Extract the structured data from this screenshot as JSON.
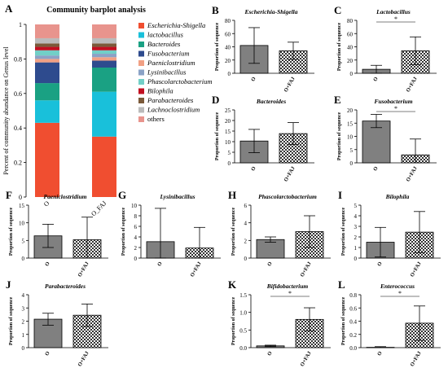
{
  "figure": {
    "panel_letters": [
      "A",
      "B",
      "C",
      "D",
      "E",
      "F",
      "G",
      "H",
      "I",
      "J",
      "K",
      "L"
    ]
  },
  "colors": {
    "stack": [
      "#f04e30",
      "#19c0da",
      "#1aa183",
      "#2e4b8e",
      "#f1a084",
      "#8ba2c6",
      "#72cfc7",
      "#c10f20",
      "#7b5a3a",
      "#bbbbbb",
      "#e8948d"
    ],
    "bar_o": "#808080",
    "bar_ofaj_pattern": "checker"
  },
  "chart_data": [
    {
      "panel": "A",
      "type": "bar",
      "stacked": true,
      "title": "Community barplot analysis",
      "ylabel": "Percent of community abundance on Genus level",
      "categories": [
        "O",
        "O_FAJ"
      ],
      "ylim": [
        0,
        1
      ],
      "yticks": [
        "0",
        "0.2",
        "0.4",
        "0.6",
        "0.8",
        "1"
      ],
      "legend_position": "right",
      "series": [
        {
          "name": "Escherichia-Shigella",
          "values": [
            0.43,
            0.35
          ]
        },
        {
          "name": "lactobacillus",
          "values": [
            0.13,
            0.26
          ]
        },
        {
          "name": "Bacteroides",
          "values": [
            0.1,
            0.14
          ]
        },
        {
          "name": "Fusobacterium",
          "values": [
            0.12,
            0.04
          ]
        },
        {
          "name": "Paeniclostridium",
          "values": [
            0.02,
            0.02
          ]
        },
        {
          "name": "Lysinibacillus",
          "values": [
            0.02,
            0.02
          ]
        },
        {
          "name": "Phascolarctobacterium",
          "values": [
            0.03,
            0.02
          ]
        },
        {
          "name": "Bilophila",
          "values": [
            0.02,
            0.02
          ]
        },
        {
          "name": "Parabacteroides",
          "values": [
            0.02,
            0.02
          ]
        },
        {
          "name": "Lachnoclostridium",
          "values": [
            0.03,
            0.03
          ]
        },
        {
          "name": "others",
          "values": [
            0.08,
            0.08
          ]
        }
      ]
    },
    {
      "panel": "B",
      "type": "bar",
      "title": "Escherichia-Shigella",
      "ylabel": "Proportion of sequence",
      "categories": [
        "O",
        "O+FAJ"
      ],
      "ylim": [
        0,
        80
      ],
      "yticks": [
        0,
        20,
        40,
        60,
        80
      ],
      "values": [
        42,
        34
      ],
      "errors": [
        27,
        13
      ],
      "significance": ""
    },
    {
      "panel": "C",
      "type": "bar",
      "title": "Lactobacillus",
      "ylabel": "Proportion of sequence",
      "categories": [
        "O",
        "O+FAJ"
      ],
      "ylim": [
        0,
        80
      ],
      "yticks": [
        0,
        20,
        40,
        60,
        80
      ],
      "values": [
        6,
        34
      ],
      "errors": [
        6,
        21
      ],
      "significance": "*"
    },
    {
      "panel": "D",
      "type": "bar",
      "title": "Bacteroides",
      "ylabel": "Proportion of sequence",
      "categories": [
        "O",
        "O+FAJ"
      ],
      "ylim": [
        0,
        25
      ],
      "yticks": [
        0,
        5,
        10,
        15,
        20,
        25
      ],
      "values": [
        10.3,
        13.8
      ],
      "errors": [
        5.5,
        5.2
      ],
      "significance": ""
    },
    {
      "panel": "E",
      "type": "bar",
      "title": "Fusobacterium",
      "ylabel": "Proportion of sequence",
      "categories": [
        "O",
        "O+FAJ"
      ],
      "ylim": [
        0,
        20
      ],
      "yticks": [
        0,
        5,
        10,
        15,
        20
      ],
      "values": [
        15.8,
        3.0
      ],
      "errors": [
        2.5,
        6.0
      ],
      "significance": "*"
    },
    {
      "panel": "F",
      "type": "bar",
      "title": "Paeniclostridium",
      "ylabel": "Proportion of sequence",
      "categories": [
        "O",
        "O+FAJ"
      ],
      "ylim": [
        0,
        15
      ],
      "yticks": [
        0,
        5,
        10,
        15
      ],
      "values": [
        6.3,
        5.2
      ],
      "errors": [
        3.3,
        6.4
      ],
      "significance": ""
    },
    {
      "panel": "G",
      "type": "bar",
      "title": "Lysinibacillus",
      "ylabel": "Proportion of sequence",
      "categories": [
        "O",
        "O+FAJ"
      ],
      "ylim": [
        0,
        10
      ],
      "yticks": [
        0,
        2,
        4,
        6,
        8,
        10
      ],
      "values": [
        3.1,
        1.9
      ],
      "errors": [
        6.3,
        3.9
      ],
      "significance": ""
    },
    {
      "panel": "H",
      "type": "bar",
      "title": "Phascolarctobacterium",
      "ylabel": "Proportion of sequence",
      "categories": [
        "O",
        "O+FAJ"
      ],
      "ylim": [
        0,
        6
      ],
      "yticks": [
        0,
        2,
        4,
        6
      ],
      "values": [
        2.1,
        3.0
      ],
      "errors": [
        0.3,
        1.8
      ],
      "significance": ""
    },
    {
      "panel": "I",
      "type": "bar",
      "title": "Bilophila",
      "ylabel": "Proportion of sequence",
      "categories": [
        "O",
        "O+FAJ"
      ],
      "ylim": [
        0,
        5
      ],
      "yticks": [
        0,
        1,
        2,
        3,
        4,
        5
      ],
      "values": [
        1.5,
        2.45
      ],
      "errors": [
        1.4,
        1.95
      ],
      "significance": ""
    },
    {
      "panel": "J",
      "type": "bar",
      "title": "Parabacteroides",
      "ylabel": "Proportion of sequence",
      "categories": [
        "O",
        "O+FAJ"
      ],
      "ylim": [
        0,
        4
      ],
      "yticks": [
        0,
        1,
        2,
        3,
        4
      ],
      "values": [
        2.15,
        2.45
      ],
      "errors": [
        0.45,
        0.85
      ],
      "significance": ""
    },
    {
      "panel": "K",
      "type": "bar",
      "title": "Bifidobacterium",
      "ylabel": "Proportion of sequence",
      "categories": [
        "O",
        "O+FAJ"
      ],
      "ylim": [
        0,
        1.5
      ],
      "yticks": [
        "0.0",
        "0.5",
        "1.0",
        "1.5"
      ],
      "values": [
        0.05,
        0.8
      ],
      "errors": [
        0.02,
        0.33
      ],
      "significance": "*"
    },
    {
      "panel": "L",
      "type": "bar",
      "title": "Enterococcus",
      "ylabel": "Proportion of sequence",
      "categories": [
        "O",
        "O+FAJ"
      ],
      "ylim": [
        0,
        0.8
      ],
      "yticks": [
        "0.0",
        "0.2",
        "0.4",
        "0.6",
        "0.8"
      ],
      "values": [
        0.005,
        0.37
      ],
      "errors": [
        0.01,
        0.26
      ],
      "significance": "*"
    }
  ]
}
